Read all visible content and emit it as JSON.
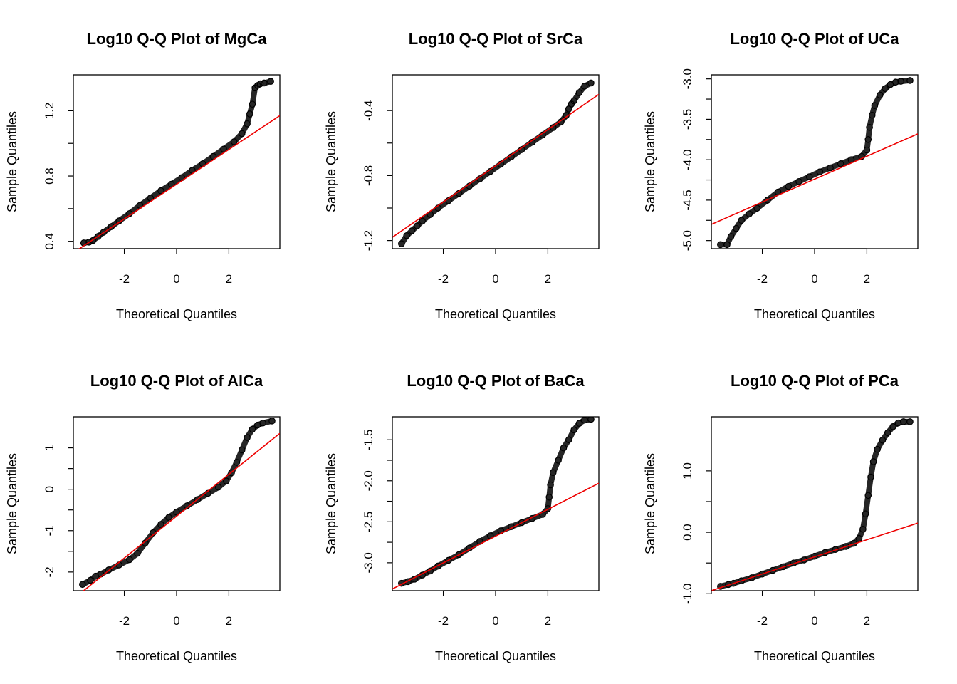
{
  "chart_data": [
    {
      "type": "scatter",
      "title": "Log10 Q-Q Plot of MgCa",
      "xlabel": "Theoretical Quantiles",
      "ylabel": "Sample Quantiles",
      "xlim": [
        -3.95,
        3.95
      ],
      "ylim": [
        0.355,
        1.42
      ],
      "xticks": [
        -2,
        0,
        2
      ],
      "yticks": [
        0.4,
        0.8,
        1.2
      ],
      "yticklabels": [
        "0.4",
        "0.8",
        "1.2"
      ],
      "fit_line": [
        [
          -3.95,
          0.33
        ],
        [
          3.95,
          1.17
        ]
      ],
      "points": [
        [
          -3.55,
          0.39
        ],
        [
          -3.35,
          0.395
        ],
        [
          -3.2,
          0.405
        ],
        [
          -3.0,
          0.43
        ],
        [
          -2.8,
          0.455
        ],
        [
          -2.5,
          0.49
        ],
        [
          -2.2,
          0.525
        ],
        [
          -1.8,
          0.57
        ],
        [
          -1.4,
          0.62
        ],
        [
          -1.0,
          0.665
        ],
        [
          -0.6,
          0.71
        ],
        [
          -0.2,
          0.75
        ],
        [
          0.2,
          0.79
        ],
        [
          0.6,
          0.835
        ],
        [
          1.0,
          0.875
        ],
        [
          1.4,
          0.92
        ],
        [
          1.8,
          0.965
        ],
        [
          2.2,
          1.01
        ],
        [
          2.5,
          1.06
        ],
        [
          2.7,
          1.12
        ],
        [
          2.8,
          1.18
        ],
        [
          2.9,
          1.24
        ],
        [
          3.0,
          1.34
        ],
        [
          3.1,
          1.355
        ],
        [
          3.2,
          1.365
        ],
        [
          3.35,
          1.37
        ],
        [
          3.6,
          1.38
        ]
      ]
    },
    {
      "type": "scatter",
      "title": "Log10 Q-Q Plot of SrCa",
      "xlabel": "Theoretical Quantiles",
      "ylabel": "Sample Quantiles",
      "xlim": [
        -3.95,
        3.95
      ],
      "ylim": [
        -1.25,
        -0.18
      ],
      "xticks": [
        -2,
        0,
        2
      ],
      "yticks": [
        -1.2,
        -0.8,
        -0.4
      ],
      "yticklabels": [
        "-1.2",
        "-0.8",
        "-0.4"
      ],
      "fit_line": [
        [
          -3.95,
          -1.18
        ],
        [
          3.95,
          -0.3
        ]
      ],
      "points": [
        [
          -3.6,
          -1.22
        ],
        [
          -3.4,
          -1.17
        ],
        [
          -3.2,
          -1.14
        ],
        [
          -3.0,
          -1.11
        ],
        [
          -2.8,
          -1.08
        ],
        [
          -2.5,
          -1.04
        ],
        [
          -2.2,
          -1.0
        ],
        [
          -1.8,
          -0.955
        ],
        [
          -1.4,
          -0.91
        ],
        [
          -1.0,
          -0.865
        ],
        [
          -0.6,
          -0.82
        ],
        [
          -0.2,
          -0.775
        ],
        [
          0.2,
          -0.73
        ],
        [
          0.6,
          -0.685
        ],
        [
          1.0,
          -0.64
        ],
        [
          1.4,
          -0.595
        ],
        [
          1.8,
          -0.55
        ],
        [
          2.2,
          -0.505
        ],
        [
          2.5,
          -0.47
        ],
        [
          2.7,
          -0.43
        ],
        [
          2.8,
          -0.39
        ],
        [
          2.9,
          -0.36
        ],
        [
          3.0,
          -0.34
        ],
        [
          3.2,
          -0.29
        ],
        [
          3.4,
          -0.25
        ],
        [
          3.65,
          -0.23
        ]
      ]
    },
    {
      "type": "scatter",
      "title": "Log10 Q-Q Plot of UCa",
      "xlabel": "Theoretical Quantiles",
      "ylabel": "Sample Quantiles",
      "xlim": [
        -3.95,
        3.95
      ],
      "ylim": [
        -5.1,
        -2.95
      ],
      "xticks": [
        -2,
        0,
        2
      ],
      "yticks": [
        -5.0,
        -4.5,
        -4.0,
        -3.5,
        -3.0
      ],
      "yticklabels": [
        "-5.0",
        "-4.5",
        "-4.0",
        "-3.5",
        "-3.0"
      ],
      "fit_line": [
        [
          -3.95,
          -4.8
        ],
        [
          3.95,
          -3.68
        ]
      ],
      "points": [
        [
          -3.6,
          -5.05
        ],
        [
          -3.35,
          -5.05
        ],
        [
          -3.2,
          -4.95
        ],
        [
          -3.0,
          -4.85
        ],
        [
          -2.8,
          -4.75
        ],
        [
          -2.5,
          -4.67
        ],
        [
          -2.2,
          -4.6
        ],
        [
          -1.8,
          -4.5
        ],
        [
          -1.4,
          -4.4
        ],
        [
          -1.0,
          -4.33
        ],
        [
          -0.6,
          -4.27
        ],
        [
          -0.2,
          -4.21
        ],
        [
          0.2,
          -4.15
        ],
        [
          0.6,
          -4.1
        ],
        [
          1.0,
          -4.05
        ],
        [
          1.4,
          -4.0
        ],
        [
          1.8,
          -3.96
        ],
        [
          2.0,
          -3.88
        ],
        [
          2.05,
          -3.75
        ],
        [
          2.1,
          -3.6
        ],
        [
          2.2,
          -3.45
        ],
        [
          2.3,
          -3.33
        ],
        [
          2.5,
          -3.2
        ],
        [
          2.7,
          -3.12
        ],
        [
          2.9,
          -3.07
        ],
        [
          3.1,
          -3.04
        ],
        [
          3.3,
          -3.03
        ],
        [
          3.65,
          -3.02
        ]
      ]
    },
    {
      "type": "scatter",
      "title": "Log10 Q-Q Plot of AlCa",
      "xlabel": "Theoretical Quantiles",
      "ylabel": "Sample Quantiles",
      "xlim": [
        -3.95,
        3.95
      ],
      "ylim": [
        -2.45,
        1.75
      ],
      "xticks": [
        -2,
        0,
        2
      ],
      "yticks": [
        -2,
        -1,
        0,
        1
      ],
      "yticklabels": [
        "-2",
        "-1",
        "0",
        "1"
      ],
      "fit_line": [
        [
          -3.95,
          -2.65
        ],
        [
          3.95,
          1.35
        ]
      ],
      "points": [
        [
          -3.6,
          -2.3
        ],
        [
          -3.3,
          -2.2
        ],
        [
          -3.1,
          -2.1
        ],
        [
          -2.9,
          -2.05
        ],
        [
          -2.6,
          -1.95
        ],
        [
          -2.2,
          -1.83
        ],
        [
          -1.8,
          -1.7
        ],
        [
          -1.5,
          -1.55
        ],
        [
          -1.2,
          -1.3
        ],
        [
          -0.9,
          -1.05
        ],
        [
          -0.6,
          -0.85
        ],
        [
          -0.3,
          -0.68
        ],
        [
          0.0,
          -0.55
        ],
        [
          0.4,
          -0.4
        ],
        [
          0.8,
          -0.25
        ],
        [
          1.2,
          -0.1
        ],
        [
          1.6,
          0.05
        ],
        [
          1.9,
          0.2
        ],
        [
          2.1,
          0.4
        ],
        [
          2.3,
          0.65
        ],
        [
          2.5,
          0.95
        ],
        [
          2.7,
          1.25
        ],
        [
          2.9,
          1.45
        ],
        [
          3.1,
          1.55
        ],
        [
          3.3,
          1.6
        ],
        [
          3.65,
          1.65
        ]
      ]
    },
    {
      "type": "scatter",
      "title": "Log10 Q-Q Plot of BaCa",
      "xlabel": "Theoretical Quantiles",
      "ylabel": "Sample Quantiles",
      "xlim": [
        -3.95,
        3.95
      ],
      "ylim": [
        -3.34,
        -1.22
      ],
      "xticks": [
        -2,
        0,
        2
      ],
      "yticks": [
        -3.0,
        -2.5,
        -2.0,
        -1.5
      ],
      "yticklabels": [
        "-3.0",
        "-2.5",
        "-2.0",
        "-1.5"
      ],
      "fit_line": [
        [
          -3.95,
          -3.32
        ],
        [
          3.95,
          -2.03
        ]
      ],
      "points": [
        [
          -3.6,
          -3.25
        ],
        [
          -3.35,
          -3.23
        ],
        [
          -3.1,
          -3.2
        ],
        [
          -2.8,
          -3.15
        ],
        [
          -2.5,
          -3.1
        ],
        [
          -2.2,
          -3.04
        ],
        [
          -1.8,
          -2.97
        ],
        [
          -1.4,
          -2.9
        ],
        [
          -1.0,
          -2.82
        ],
        [
          -0.6,
          -2.74
        ],
        [
          -0.2,
          -2.67
        ],
        [
          0.2,
          -2.61
        ],
        [
          0.6,
          -2.56
        ],
        [
          1.0,
          -2.51
        ],
        [
          1.4,
          -2.46
        ],
        [
          1.8,
          -2.41
        ],
        [
          2.0,
          -2.34
        ],
        [
          2.05,
          -2.2
        ],
        [
          2.1,
          -2.05
        ],
        [
          2.2,
          -1.9
        ],
        [
          2.4,
          -1.75
        ],
        [
          2.6,
          -1.6
        ],
        [
          2.8,
          -1.5
        ],
        [
          3.0,
          -1.38
        ],
        [
          3.2,
          -1.3
        ],
        [
          3.4,
          -1.26
        ],
        [
          3.65,
          -1.25
        ]
      ]
    },
    {
      "type": "scatter",
      "title": "Log10 Q-Q Plot of PCa",
      "xlabel": "Theoretical Quantiles",
      "ylabel": "Sample Quantiles",
      "xlim": [
        -3.95,
        3.95
      ],
      "ylim": [
        -0.95,
        1.88
      ],
      "xticks": [
        -2,
        0,
        2
      ],
      "yticks": [
        -1.0,
        0.0,
        1.0
      ],
      "yticklabels": [
        "-1.0",
        "0.0",
        "1.0"
      ],
      "fit_line": [
        [
          -3.95,
          -0.95
        ],
        [
          3.95,
          0.15
        ]
      ],
      "points": [
        [
          -3.6,
          -0.88
        ],
        [
          -3.3,
          -0.85
        ],
        [
          -3.1,
          -0.83
        ],
        [
          -2.8,
          -0.79
        ],
        [
          -2.4,
          -0.74
        ],
        [
          -2.0,
          -0.68
        ],
        [
          -1.6,
          -0.62
        ],
        [
          -1.2,
          -0.56
        ],
        [
          -0.8,
          -0.5
        ],
        [
          -0.4,
          -0.45
        ],
        [
          0.0,
          -0.39
        ],
        [
          0.4,
          -0.33
        ],
        [
          0.8,
          -0.28
        ],
        [
          1.2,
          -0.23
        ],
        [
          1.5,
          -0.18
        ],
        [
          1.7,
          -0.1
        ],
        [
          1.85,
          0.05
        ],
        [
          1.95,
          0.3
        ],
        [
          2.05,
          0.6
        ],
        [
          2.15,
          0.9
        ],
        [
          2.25,
          1.15
        ],
        [
          2.4,
          1.35
        ],
        [
          2.6,
          1.5
        ],
        [
          2.8,
          1.62
        ],
        [
          3.0,
          1.72
        ],
        [
          3.2,
          1.78
        ],
        [
          3.4,
          1.8
        ],
        [
          3.65,
          1.8
        ]
      ]
    }
  ]
}
